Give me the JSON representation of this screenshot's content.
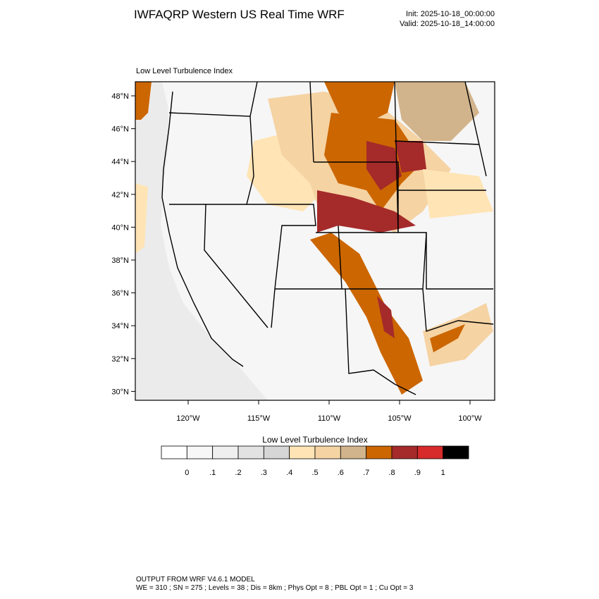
{
  "header": {
    "title": "IWFAQRP Western US Real Time WRF",
    "init": "Init: 2025-10-18_00:00:00",
    "valid": "Valid: 2025-10-18_14:00:00"
  },
  "map": {
    "title": "Low Level Turbulence Index",
    "lat_labels": [
      "48°N",
      "46°N",
      "44°N",
      "42°N",
      "40°N",
      "38°N",
      "36°N",
      "34°N",
      "32°N",
      "30°N"
    ],
    "lon_labels": [
      "120°W",
      "115°W",
      "110°W",
      "105°W",
      "100°W"
    ]
  },
  "colorbar": {
    "title": "Low Level Turbulence Index",
    "colors": [
      "#ffffff",
      "#f7f7f7",
      "#efefef",
      "#e2e2e2",
      "#d6d6d6",
      "#ffe4b5",
      "#f5d3a3",
      "#d2b48c",
      "#cc6600",
      "#a52a2a",
      "#d72a2a",
      "#000000"
    ],
    "labels": [
      "0",
      ".1",
      ".2",
      ".3",
      ".4",
      ".5",
      ".6",
      ".7",
      ".8",
      ".9",
      "1"
    ]
  },
  "footer": {
    "line1": "OUTPUT FROM WRF V4.6.1 MODEL",
    "line2": "WE = 310 ; SN = 275 ; Levels = 38 ; Dis = 8km ; Phys Opt = 8 ; PBL Opt = 1 ; Cu Opt = 3"
  }
}
